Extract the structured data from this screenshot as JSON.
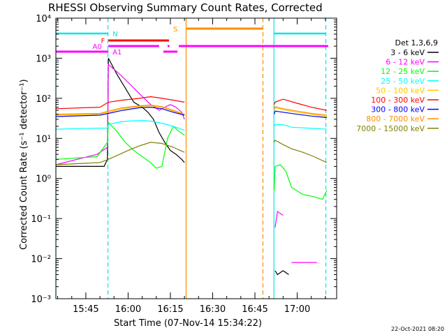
{
  "chart_data": {
    "type": "line",
    "title": "RHESSI Observing Summary Count Rates, Corrected",
    "xlabel": "Start Time (07-Nov-14 15:34:22)",
    "ylabel": "Corrected Count Rate (s⁻¹ detector⁻¹)",
    "x_ticks": [
      "15:45",
      "16:00",
      "16:15",
      "16:30",
      "16:45",
      "17:00"
    ],
    "y_ticks": [
      "10⁻³",
      "10⁻²",
      "10⁻¹",
      "10⁰",
      "10¹",
      "10²",
      "10³",
      "10⁴"
    ],
    "y_scale": "log",
    "ylim": [
      0.001,
      10000
    ],
    "xlim": [
      "15:34:22",
      "17:14:00"
    ],
    "legend_title": "Det 1,3,6,9",
    "legend_position": "right",
    "footer": "22-Oct-2021 08:20",
    "flags": [
      {
        "label": "N",
        "color": "#00e5e5"
      },
      {
        "label": "F",
        "color": "#ff0000"
      },
      {
        "label": "S",
        "color": "#ff8c00"
      },
      {
        "label": "A0",
        "color": "#ff00ff"
      },
      {
        "label": "A1",
        "color": "#ff00ff"
      }
    ],
    "vertical_markers": [
      {
        "time": "15:34:22",
        "color": "#00e5e5",
        "style": "solid"
      },
      {
        "time": "15:52:50",
        "color": "#00e5e5",
        "style": "dashed"
      },
      {
        "time": "16:20:35",
        "color": "#ff8c00",
        "style": "solid"
      },
      {
        "time": "16:47:50",
        "color": "#ff8c00",
        "style": "dashed"
      },
      {
        "time": "16:51:45",
        "color": "#00e5e5",
        "style": "solid"
      },
      {
        "time": "17:10:10",
        "color": "#00e5e5",
        "style": "dashed"
      }
    ],
    "series": [
      {
        "name": "3 - 6 keV",
        "color": "#000000",
        "x": [
          "15:34:22",
          "15:49:00",
          "15:51:30",
          "15:52:40",
          "15:53:00",
          "15:56:00",
          "15:59:00",
          "16:02:00",
          "16:05:00",
          "16:07:00",
          "16:09:00",
          "16:11:00",
          "16:13:00",
          "16:15:00",
          "16:17:00",
          "16:19:00",
          "16:20:00",
          null,
          "16:52:10",
          "16:53:00",
          "16:55:00",
          "16:57:00"
        ],
        "y": [
          2.0,
          2.0,
          2.0,
          3.0,
          1000,
          400,
          180,
          80,
          60,
          45,
          30,
          14,
          8,
          5,
          4,
          3,
          2.5,
          null,
          0.005,
          0.004,
          0.005,
          0.004
        ]
      },
      {
        "name": "6 - 12 keV",
        "color": "#ff00ff",
        "x": [
          "15:34:22",
          "15:49:00",
          "15:52:40",
          "15:53:00",
          "15:57:00",
          "16:00:00",
          "16:04:00",
          "16:08:00",
          "16:11:00",
          "16:13:00",
          "16:15:00",
          "16:17:00",
          "16:19:00",
          "16:20:00",
          null,
          "16:52:10",
          "16:53:00",
          "16:55:00",
          null,
          "16:58:00",
          "17:07:00"
        ],
        "y": [
          2.2,
          4.0,
          6.0,
          700,
          400,
          250,
          130,
          70,
          50,
          60,
          70,
          60,
          45,
          30,
          null,
          0.06,
          0.15,
          0.12,
          null,
          0.008,
          0.008
        ]
      },
      {
        "name": "12 - 25 keV",
        "color": "#00ff00",
        "x": [
          "15:34:22",
          "15:49:00",
          "15:52:40",
          "15:53:00",
          "15:56:00",
          "15:59:00",
          "16:02:00",
          "16:05:00",
          "16:08:00",
          "16:10:00",
          "16:12:00",
          "16:14:00",
          "16:16:00",
          "16:18:00",
          "16:20:00",
          null,
          "16:51:50",
          "16:52:10",
          "16:54:00",
          "16:56:00",
          "16:58:00",
          "17:02:00",
          "17:06:00",
          "17:09:00",
          "17:10:30"
        ],
        "y": [
          3.0,
          3.5,
          8.0,
          25,
          15,
          8,
          5,
          3.5,
          2.5,
          1.8,
          2.0,
          10,
          20,
          15,
          12,
          null,
          0.5,
          2,
          2.2,
          1.5,
          0.6,
          0.4,
          0.35,
          0.3,
          0.5
        ]
      },
      {
        "name": "25 - 50 keV",
        "color": "#00ffff",
        "x": [
          "15:34:22",
          "15:50:00",
          "15:52:40",
          "15:53:00",
          "15:56:00",
          "16:00:00",
          "16:05:00",
          "16:08:00",
          "16:12:00",
          "16:16:00",
          "16:20:00",
          null,
          "16:51:50",
          "16:52:10",
          "16:55:00",
          "16:58:00",
          "17:04:00",
          "17:10:30"
        ],
        "y": [
          17,
          18,
          18,
          22,
          25,
          27,
          28,
          27,
          24,
          20,
          16,
          null,
          20,
          22,
          22,
          19,
          18,
          17
        ]
      },
      {
        "name": "50 - 100 keV",
        "color": "#ffc800",
        "x": [
          "15:34:22",
          "15:50:00",
          "15:53:00",
          "15:58:00",
          "16:04:00",
          "16:08:00",
          "16:12:00",
          "16:16:00",
          "16:20:00",
          null,
          "16:51:50",
          "16:52:10",
          "16:55:00",
          "17:00:00",
          "17:05:00",
          "17:10:30"
        ],
        "y": [
          38,
          40,
          45,
          55,
          62,
          65,
          60,
          48,
          38,
          null,
          50,
          58,
          52,
          45,
          40,
          35
        ]
      },
      {
        "name": "100 - 300 keV",
        "color": "#ff0000",
        "x": [
          "15:34:22",
          "15:50:00",
          "15:53:00",
          "15:58:00",
          "16:04:00",
          "16:08:00",
          "16:12:00",
          "16:16:00",
          "16:20:00",
          null,
          "16:51:50",
          "16:52:10",
          "16:55:00",
          "17:00:00",
          "17:05:00",
          "17:10:30"
        ],
        "y": [
          55,
          60,
          80,
          90,
          100,
          110,
          100,
          90,
          80,
          null,
          70,
          80,
          95,
          75,
          60,
          50
        ]
      },
      {
        "name": "300 - 800 keV",
        "color": "#0000ff",
        "x": [
          "15:34:22",
          "15:50:00",
          "15:53:00",
          "15:58:00",
          "16:04:00",
          "16:08:00",
          "16:12:00",
          "16:16:00",
          "16:20:00",
          null,
          "16:51:50",
          "16:52:10",
          "16:55:00",
          "17:00:00",
          "17:05:00",
          "17:10:30"
        ],
        "y": [
          35,
          38,
          42,
          50,
          58,
          60,
          55,
          45,
          38,
          null,
          40,
          48,
          45,
          40,
          36,
          33
        ]
      },
      {
        "name": "800 - 7000 keV",
        "color": "#ff8c00",
        "x": [
          "15:34:22",
          "15:50:00",
          "15:53:00",
          "15:58:00",
          "16:04:00",
          "16:08:00",
          "16:12:00",
          "16:16:00",
          "16:20:00",
          null,
          "16:51:50",
          "16:52:10",
          "16:55:00",
          "17:00:00",
          "17:05:00",
          "17:10:30"
        ],
        "y": [
          40,
          42,
          48,
          58,
          65,
          68,
          62,
          50,
          40,
          null,
          55,
          62,
          55,
          48,
          42,
          38
        ]
      },
      {
        "name": "7000 - 15000 keV",
        "color": "#808000",
        "x": [
          "15:34:22",
          "15:50:00",
          "15:53:00",
          "15:57:00",
          "16:00:00",
          "16:04:00",
          "16:08:00",
          "16:12:00",
          "16:16:00",
          "16:20:00",
          null,
          "16:51:50",
          "16:52:10",
          "16:55:00",
          "16:58:00",
          "17:02:00",
          "17:06:00",
          "17:10:30"
        ],
        "y": [
          2.2,
          2.5,
          3.0,
          4.0,
          5.0,
          6.5,
          8.0,
          7.5,
          6.0,
          4.5,
          null,
          8.0,
          9.0,
          7.0,
          5.5,
          4.5,
          3.5,
          2.5
        ]
      }
    ]
  }
}
